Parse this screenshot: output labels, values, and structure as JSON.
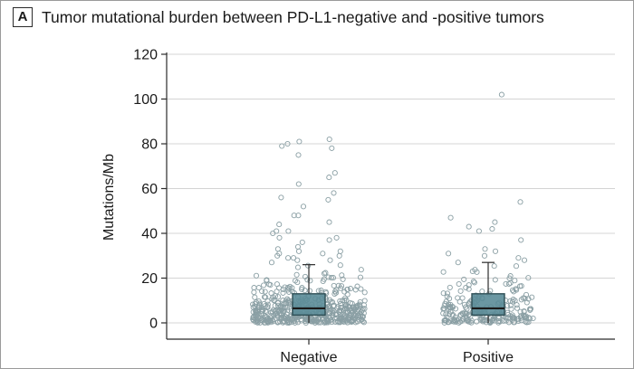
{
  "panel": {
    "label": "A"
  },
  "chart_data": {
    "type": "box",
    "title": "Tumor mutational burden between PD-L1-negative and -positive tumors",
    "xlabel": "",
    "ylabel": "Mutations/Mb",
    "ylim": [
      0,
      120
    ],
    "yticks": [
      0,
      20,
      40,
      60,
      80,
      100,
      120
    ],
    "grid": true,
    "categories": [
      "Negative",
      "Positive"
    ],
    "boxes": [
      {
        "category": "Negative",
        "q1": 3.5,
        "median": 6.5,
        "q3": 13,
        "whisker_low": 0,
        "whisker_high": 26
      },
      {
        "category": "Positive",
        "q1": 3.5,
        "median": 6.5,
        "q3": 13,
        "whisker_low": 0,
        "whisker_high": 27
      }
    ],
    "outliers": [
      {
        "category": "Negative",
        "values": [
          82,
          81,
          80,
          79,
          78,
          75,
          67,
          65,
          62,
          58,
          56,
          55,
          52,
          48,
          48,
          45,
          44,
          41,
          41,
          40,
          38,
          38,
          37,
          36,
          34,
          33,
          32,
          32,
          31,
          31,
          30,
          30,
          29,
          29,
          28,
          28,
          27
        ]
      },
      {
        "category": "Positive",
        "values": [
          102,
          54,
          47,
          45,
          43,
          42,
          41,
          37,
          33,
          32,
          31,
          30,
          29,
          28
        ]
      }
    ],
    "points_in_range_count": [
      520,
      240
    ],
    "colors": {
      "box_fill": "#5b8c98",
      "box_edge": "#2f4f56",
      "point_edge": "#8a9fa4",
      "grid": "#d4d4d4"
    }
  }
}
